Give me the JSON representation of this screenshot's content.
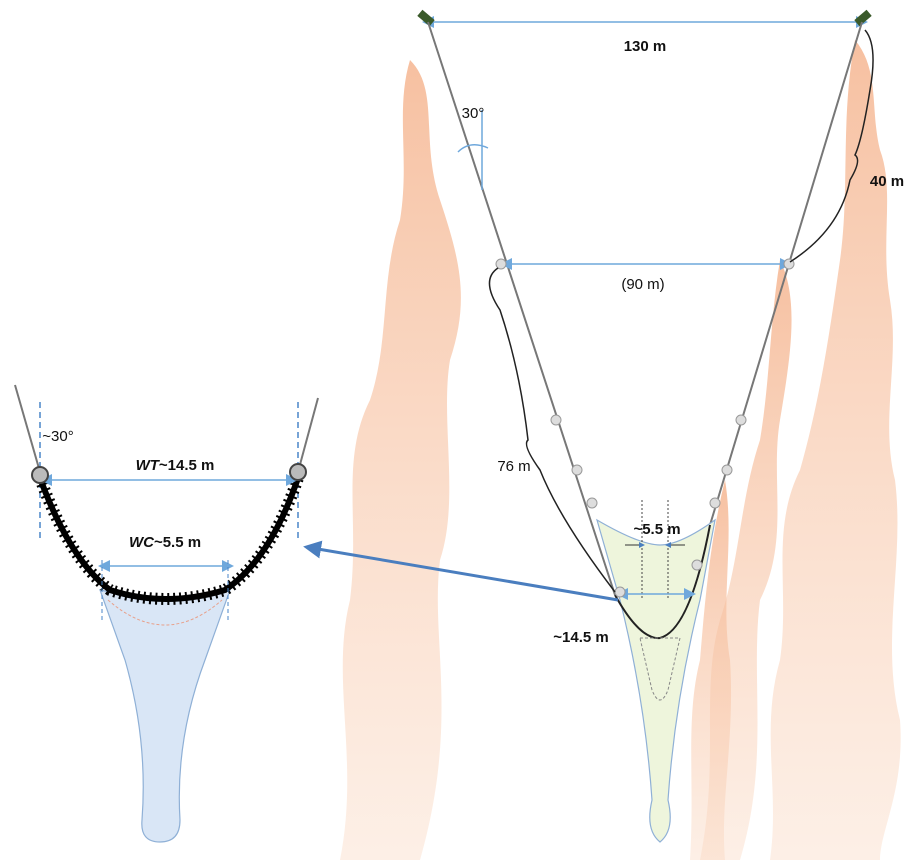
{
  "main_diagram": {
    "labels": {
      "door_spread": "130 m",
      "warp_angle": "30°",
      "bridle_length": "40 m",
      "wing_spread_upper": "(90 m)",
      "sweep_length": "76 m",
      "codend_width": "~5.5 m",
      "mouth_width": "~14.5 m"
    }
  },
  "detail_diagram": {
    "labels": {
      "angle": "~30°",
      "wt_symbol": "WT",
      "wt_value": "~14.5 m",
      "wc_symbol": "WC",
      "wc_value": "~5.5 m"
    }
  }
}
